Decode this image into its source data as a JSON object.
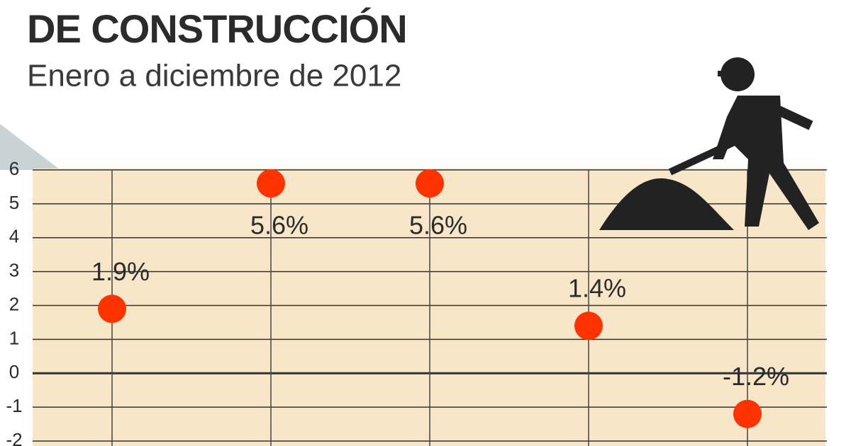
{
  "chart_data": {
    "type": "scatter",
    "title": "DE CONSTRUCCIÓN",
    "subtitle": "Enero a diciembre de 2012",
    "categories": [
      null,
      null,
      null,
      null,
      null
    ],
    "values": [
      1.9,
      5.6,
      5.6,
      1.4,
      -1.2
    ],
    "value_labels": [
      "1.9%",
      "5.6%",
      "5.6%",
      "1.4%",
      "-1.2%"
    ],
    "color": "#ff3300",
    "ylim": [
      -2,
      6
    ],
    "yticks": [
      -2,
      -1,
      0,
      1,
      2,
      3,
      4,
      5,
      6
    ],
    "grid": true
  }
}
